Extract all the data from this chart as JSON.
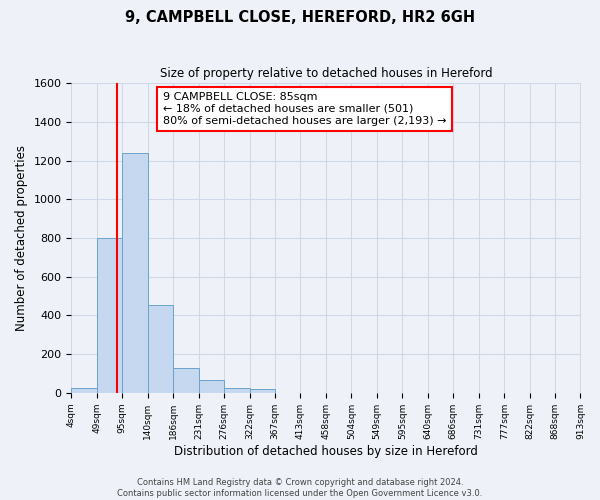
{
  "title": "9, CAMPBELL CLOSE, HEREFORD, HR2 6GH",
  "subtitle": "Size of property relative to detached houses in Hereford",
  "xlabel": "Distribution of detached houses by size in Hereford",
  "ylabel": "Number of detached properties",
  "bin_edges": [
    4,
    49,
    95,
    140,
    186,
    231,
    276,
    322,
    367,
    413,
    458,
    504,
    549,
    595,
    640,
    686,
    731,
    777,
    822,
    868,
    913
  ],
  "bar_heights": [
    25,
    800,
    1240,
    455,
    130,
    65,
    25,
    20,
    0,
    0,
    0,
    0,
    0,
    0,
    0,
    0,
    0,
    0,
    0,
    0
  ],
  "bar_color": "#c5d8f0",
  "bar_edge_color": "#6aa3cc",
  "grid_color": "#d0d8e8",
  "background_color": "#eef2f8",
  "red_line_x": 85,
  "annotation_title": "9 CAMPBELL CLOSE: 85sqm",
  "annotation_line1": "← 18% of detached houses are smaller (501)",
  "annotation_line2": "80% of semi-detached houses are larger (2,193) →",
  "ylim": [
    0,
    1600
  ],
  "yticks": [
    0,
    200,
    400,
    600,
    800,
    1000,
    1200,
    1400,
    1600
  ],
  "tick_labels": [
    "4sqm",
    "49sqm",
    "95sqm",
    "140sqm",
    "186sqm",
    "231sqm",
    "276sqm",
    "322sqm",
    "367sqm",
    "413sqm",
    "458sqm",
    "504sqm",
    "549sqm",
    "595sqm",
    "640sqm",
    "686sqm",
    "731sqm",
    "777sqm",
    "822sqm",
    "868sqm",
    "913sqm"
  ],
  "footer1": "Contains HM Land Registry data © Crown copyright and database right 2024.",
  "footer2": "Contains public sector information licensed under the Open Government Licence v3.0."
}
